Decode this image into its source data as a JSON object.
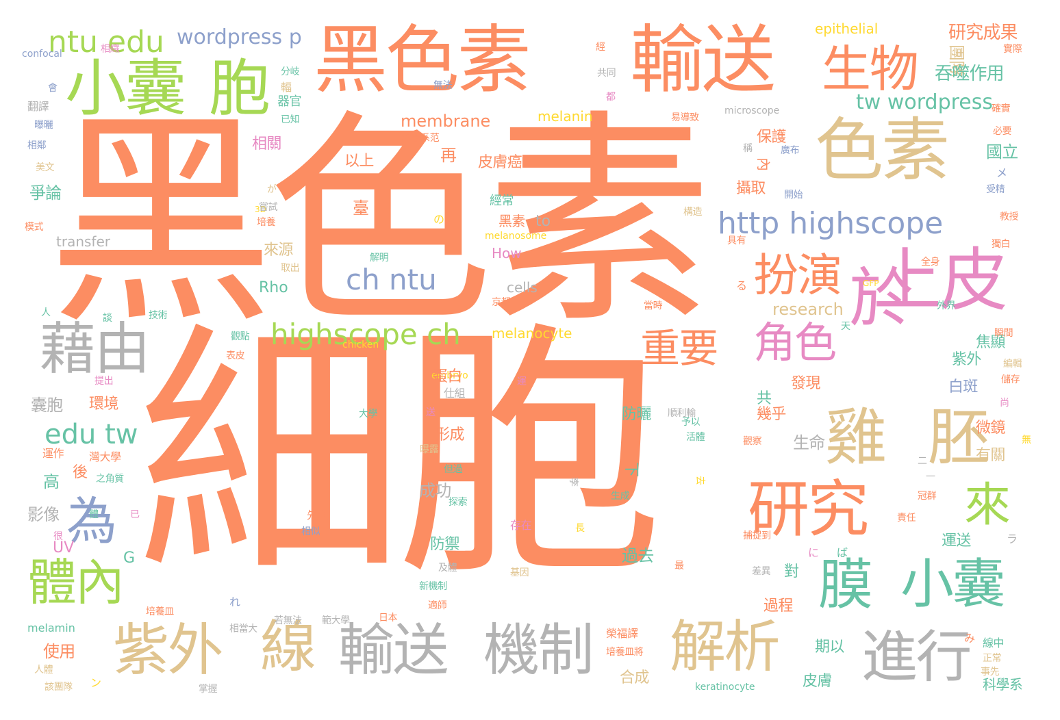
{
  "palette": {
    "orange": "#fc8d62",
    "tan": "#e0c48f",
    "green": "#a6d854",
    "teal": "#66c2a5",
    "blue": "#8da0cb",
    "pink": "#e78ac3",
    "gray": "#b3b3b3",
    "yellow": "#ffd92f"
  },
  "words": [
    {
      "text": "黑色素",
      "color": "orange"
    },
    {
      "text": "細胞",
      "color": "orange"
    },
    {
      "text": "黑色素",
      "color": "orange"
    },
    {
      "text": "輸送",
      "color": "orange"
    },
    {
      "text": "色素",
      "color": "tan"
    },
    {
      "text": "小囊",
      "color": "green"
    },
    {
      "text": "胞",
      "color": "green"
    },
    {
      "text": "生物",
      "color": "orange"
    },
    {
      "text": "ntu edu",
      "color": "green"
    },
    {
      "text": "wordpress p",
      "color": "blue"
    },
    {
      "text": "上皮",
      "color": "pink"
    },
    {
      "text": "於",
      "color": "pink"
    },
    {
      "text": "藉由",
      "color": "gray"
    },
    {
      "text": "扮演",
      "color": "orange"
    },
    {
      "text": "http highscope",
      "color": "blue"
    },
    {
      "text": "ch ntu",
      "color": "blue"
    },
    {
      "text": "highscope ch",
      "color": "green"
    },
    {
      "text": "重要",
      "color": "orange"
    },
    {
      "text": "角色",
      "color": "pink"
    },
    {
      "text": "雞",
      "color": "tan"
    },
    {
      "text": "胚",
      "color": "tan"
    },
    {
      "text": "研究",
      "color": "orange"
    },
    {
      "text": "來",
      "color": "green"
    },
    {
      "text": "為",
      "color": "blue"
    },
    {
      "text": "體內",
      "color": "green"
    },
    {
      "text": "edu tw",
      "color": "teal"
    },
    {
      "text": "膜",
      "color": "teal"
    },
    {
      "text": "小囊",
      "color": "teal"
    },
    {
      "text": "紫外",
      "color": "tan"
    },
    {
      "text": "線",
      "color": "tan"
    },
    {
      "text": "輸送",
      "color": "gray"
    },
    {
      "text": "機制",
      "color": "gray"
    },
    {
      "text": "解析",
      "color": "tan"
    },
    {
      "text": "進行",
      "color": "gray"
    },
    {
      "text": "tw wordpress",
      "color": "teal"
    },
    {
      "text": "membrane",
      "color": "orange"
    },
    {
      "text": "研究成果",
      "color": "orange"
    },
    {
      "text": "團隊",
      "color": "tan"
    },
    {
      "text": "吞噬作用",
      "color": "teal"
    },
    {
      "text": "epithelial",
      "color": "yellow"
    },
    {
      "text": "melanin",
      "color": "yellow"
    },
    {
      "text": "Rho",
      "color": "teal"
    },
    {
      "text": "research",
      "color": "tan"
    },
    {
      "text": "melanocyte",
      "color": "yellow"
    },
    {
      "text": "cells",
      "color": "gray"
    },
    {
      "text": "How",
      "color": "pink"
    },
    {
      "text": "to",
      "color": "gray"
    },
    {
      "text": "transfer",
      "color": "gray"
    },
    {
      "text": "UV",
      "color": "pink"
    },
    {
      "text": "G",
      "color": "teal"
    },
    {
      "text": "confocal",
      "color": "blue"
    },
    {
      "text": "microscope",
      "color": "gray"
    },
    {
      "text": "melanosome",
      "color": "yellow"
    },
    {
      "text": "chicken",
      "color": "yellow"
    },
    {
      "text": "embryo",
      "color": "yellow"
    },
    {
      "text": "melamin",
      "color": "teal"
    },
    {
      "text": "keratinocyte",
      "color": "teal"
    },
    {
      "text": "GFP",
      "color": "yellow"
    },
    {
      "text": "3D",
      "color": "yellow"
    },
    {
      "text": "以上",
      "color": "orange"
    },
    {
      "text": "再",
      "color": "orange"
    },
    {
      "text": "皮膚癌",
      "color": "orange"
    },
    {
      "text": "相關",
      "color": "pink"
    },
    {
      "text": "保護",
      "color": "orange"
    },
    {
      "text": "國立",
      "color": "teal"
    },
    {
      "text": "攝取",
      "color": "orange"
    },
    {
      "text": "爭論",
      "color": "teal"
    },
    {
      "text": "來源",
      "color": "tan"
    },
    {
      "text": "焦顯",
      "color": "teal"
    },
    {
      "text": "紫外",
      "color": "teal"
    },
    {
      "text": "蛋白",
      "color": "orange"
    },
    {
      "text": "發現",
      "color": "orange"
    },
    {
      "text": "白斑",
      "color": "blue"
    },
    {
      "text": "環境",
      "color": "orange"
    },
    {
      "text": "防曬",
      "color": "teal"
    },
    {
      "text": "幾乎",
      "color": "orange"
    },
    {
      "text": "微鏡",
      "color": "orange"
    },
    {
      "text": "囊胞",
      "color": "gray"
    },
    {
      "text": "形成",
      "color": "orange"
    },
    {
      "text": "生命",
      "color": "gray"
    },
    {
      "text": "有關",
      "color": "tan"
    },
    {
      "text": "高",
      "color": "teal"
    },
    {
      "text": "後",
      "color": "orange"
    },
    {
      "text": "成功",
      "color": "gray"
    },
    {
      "text": "影像",
      "color": "gray"
    },
    {
      "text": "防禦",
      "color": "teal"
    },
    {
      "text": "運送",
      "color": "teal"
    },
    {
      "text": "過去",
      "color": "teal"
    },
    {
      "text": "對",
      "color": "teal"
    },
    {
      "text": "過程",
      "color": "orange"
    },
    {
      "text": "使用",
      "color": "orange"
    },
    {
      "text": "期以",
      "color": "teal"
    },
    {
      "text": "合成",
      "color": "tan"
    },
    {
      "text": "皮膚",
      "color": "teal"
    },
    {
      "text": "共",
      "color": "teal"
    },
    {
      "text": "經常",
      "color": "teal"
    },
    {
      "text": "黑素",
      "color": "orange"
    },
    {
      "text": "內",
      "color": "orange"
    },
    {
      "text": "下",
      "color": "teal"
    },
    {
      "text": "科學系",
      "color": "teal"
    },
    {
      "text": "實際",
      "color": "orange"
    },
    {
      "text": "器官",
      "color": "teal"
    },
    {
      "text": "已知",
      "color": "teal"
    },
    {
      "text": "分岐",
      "color": "teal"
    },
    {
      "text": "翻譯",
      "color": "gray"
    },
    {
      "text": "曝曬",
      "color": "blue"
    },
    {
      "text": "相鄰",
      "color": "blue"
    },
    {
      "text": "美文",
      "color": "tan"
    },
    {
      "text": "嘗試",
      "color": "gray"
    },
    {
      "text": "培養",
      "color": "orange"
    },
    {
      "text": "模式",
      "color": "orange"
    },
    {
      "text": "取出",
      "color": "tan"
    },
    {
      "text": "解明",
      "color": "teal"
    },
    {
      "text": "京都",
      "color": "orange"
    },
    {
      "text": "技術",
      "color": "teal"
    },
    {
      "text": "觀點",
      "color": "teal"
    },
    {
      "text": "表皮",
      "color": "orange"
    },
    {
      "text": "提出",
      "color": "pink"
    },
    {
      "text": "運作",
      "color": "orange"
    },
    {
      "text": "灣大學",
      "color": "orange"
    },
    {
      "text": "之角質",
      "color": "teal"
    },
    {
      "text": "很",
      "color": "pink"
    },
    {
      "text": "體",
      "color": "teal"
    },
    {
      "text": "已",
      "color": "pink"
    },
    {
      "text": "人",
      "color": "teal"
    },
    {
      "text": "談",
      "color": "teal"
    },
    {
      "text": "仕組",
      "color": "gray"
    },
    {
      "text": "大學",
      "color": "teal"
    },
    {
      "text": "送",
      "color": "pink"
    },
    {
      "text": "運",
      "color": "pink"
    },
    {
      "text": "順利輸",
      "color": "gray"
    },
    {
      "text": "予以",
      "color": "teal"
    },
    {
      "text": "活體",
      "color": "teal"
    },
    {
      "text": "觀察",
      "color": "orange"
    },
    {
      "text": "曝露",
      "color": "tan"
    },
    {
      "text": "但過",
      "color": "teal"
    },
    {
      "text": "探索",
      "color": "teal"
    },
    {
      "text": "先進",
      "color": "orange"
    },
    {
      "text": "相似",
      "color": "blue"
    },
    {
      "text": "存在",
      "color": "pink"
    },
    {
      "text": "基因",
      "color": "tan"
    },
    {
      "text": "新機制",
      "color": "teal"
    },
    {
      "text": "及體",
      "color": "gray"
    },
    {
      "text": "適師",
      "color": "orange"
    },
    {
      "text": "日本",
      "color": "orange"
    },
    {
      "text": "範大學",
      "color": "gray"
    },
    {
      "text": "若無法",
      "color": "gray"
    },
    {
      "text": "相當大",
      "color": "gray"
    },
    {
      "text": "培養皿",
      "color": "orange"
    },
    {
      "text": "人體",
      "color": "tan"
    },
    {
      "text": "該團隊",
      "color": "tan"
    },
    {
      "text": "掌握",
      "color": "gray"
    },
    {
      "text": "榮福譯",
      "color": "orange"
    },
    {
      "text": "培養皿將",
      "color": "orange"
    },
    {
      "text": "生成",
      "color": "teal"
    },
    {
      "text": "去",
      "color": "yellow"
    },
    {
      "text": "責任",
      "color": "orange"
    },
    {
      "text": "冠群",
      "color": "orange"
    },
    {
      "text": "捕捉到",
      "color": "orange"
    },
    {
      "text": "差異",
      "color": "gray"
    },
    {
      "text": "李",
      "color": "gray"
    },
    {
      "text": "線中",
      "color": "teal"
    },
    {
      "text": "正常",
      "color": "tan"
    },
    {
      "text": "事先",
      "color": "tan"
    },
    {
      "text": "無",
      "color": "yellow"
    },
    {
      "text": "尚",
      "color": "pink"
    },
    {
      "text": "儲存",
      "color": "orange"
    },
    {
      "text": "編輯",
      "color": "tan"
    },
    {
      "text": "瞬間",
      "color": "orange"
    },
    {
      "text": "外界",
      "color": "teal"
    },
    {
      "text": "全身",
      "color": "orange"
    },
    {
      "text": "獨白",
      "color": "orange"
    },
    {
      "text": "受精",
      "color": "blue"
    },
    {
      "text": "教授",
      "color": "orange"
    },
    {
      "text": "必要",
      "color": "orange"
    },
    {
      "text": "確實",
      "color": "orange"
    },
    {
      "text": "廣布",
      "color": "blue"
    },
    {
      "text": "稱",
      "color": "gray"
    },
    {
      "text": "開始",
      "color": "blue"
    },
    {
      "text": "構造",
      "color": "tan"
    },
    {
      "text": "具有",
      "color": "orange"
    },
    {
      "text": "當時",
      "color": "orange"
    },
    {
      "text": "天",
      "color": "teal"
    },
    {
      "text": "易導致",
      "color": "orange"
    },
    {
      "text": "都",
      "color": "pink"
    },
    {
      "text": "共同",
      "color": "gray"
    },
    {
      "text": "經",
      "color": "orange"
    },
    {
      "text": "無法",
      "color": "blue"
    },
    {
      "text": "相織",
      "color": "pink"
    },
    {
      "text": "會",
      "color": "blue"
    },
    {
      "text": "科學系范",
      "color": "orange"
    },
    {
      "text": "が",
      "color": "tan"
    },
    {
      "text": "の",
      "color": "yellow"
    },
    {
      "text": "る",
      "color": "orange"
    },
    {
      "text": "ば",
      "color": "teal"
    },
    {
      "text": "に",
      "color": "pink"
    },
    {
      "text": "ラ",
      "color": "gray"
    },
    {
      "text": "メ",
      "color": "blue"
    },
    {
      "text": "れ",
      "color": "blue"
    },
    {
      "text": "ン",
      "color": "yellow"
    },
    {
      "text": "み",
      "color": "orange"
    },
    {
      "text": "長",
      "color": "yellow"
    },
    {
      "text": "最",
      "color": "orange"
    },
    {
      "text": "二",
      "color": "gray"
    },
    {
      "text": "一",
      "color": "gray"
    },
    {
      "text": "輻",
      "color": "tan"
    },
    {
      "text": "臺",
      "color": "orange"
    }
  ]
}
